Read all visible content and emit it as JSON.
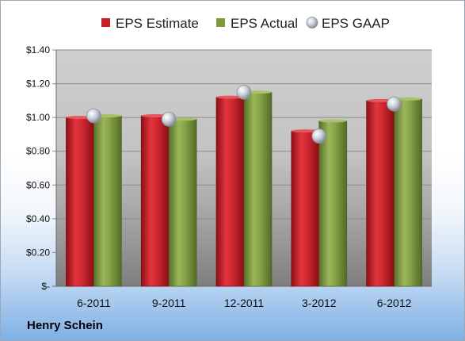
{
  "chart_data": {
    "type": "bar",
    "categories": [
      "6-2011",
      "9-2011",
      "12-2011",
      "3-2012",
      "6-2012"
    ],
    "series": [
      {
        "name": "EPS Estimate",
        "values": [
          1.0,
          1.01,
          1.12,
          0.92,
          1.1
        ],
        "color": "#c8202a",
        "kind": "bar"
      },
      {
        "name": "EPS Actual",
        "values": [
          1.01,
          0.99,
          1.15,
          0.98,
          1.11
        ],
        "color": "#7f9a3c",
        "kind": "bar"
      },
      {
        "name": "EPS GAAP",
        "values": [
          1.01,
          0.99,
          1.15,
          0.89,
          1.08
        ],
        "color": "#b4bcc6",
        "kind": "marker"
      }
    ],
    "yticks": [
      "$-",
      "$0.20",
      "$0.40",
      "$0.60",
      "$0.80",
      "$1.00",
      "$1.20",
      "$1.40"
    ],
    "ylim": [
      0,
      1.4
    ],
    "legend_position": "top",
    "grid": true
  },
  "company": "Henry Schein"
}
